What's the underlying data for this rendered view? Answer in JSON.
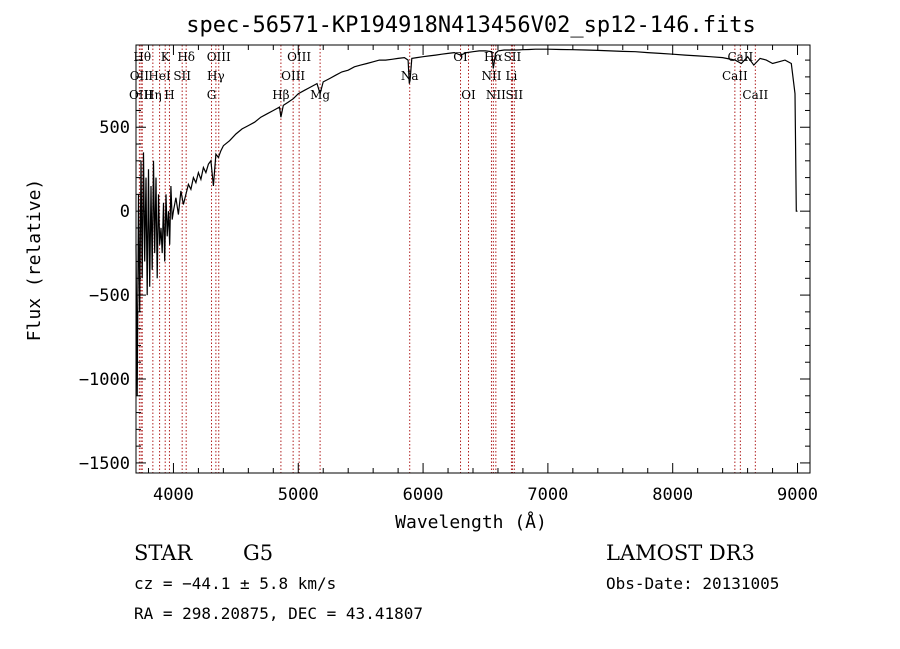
{
  "chart_data": {
    "type": "line",
    "title": "spec-56571-KP194918N413456V02_sp12-146.fits",
    "xlabel": "Wavelength (Å)",
    "ylabel": "Flux (relative)",
    "xlim": [
      3700,
      9100
    ],
    "ylim": [
      -1560,
      990
    ],
    "xticks": [
      4000,
      5000,
      6000,
      7000,
      8000,
      9000
    ],
    "yticks": [
      -1500,
      -1000,
      -500,
      0,
      500
    ],
    "xtick_labels": [
      "4000",
      "5000",
      "6000",
      "7000",
      "8000",
      "9000"
    ],
    "ytick_labels": [
      "−1500",
      "−1000",
      "−500",
      "0",
      "500"
    ],
    "series": [
      {
        "name": "spectrum",
        "x": [
          3700,
          3710,
          3720,
          3730,
          3740,
          3750,
          3760,
          3770,
          3780,
          3790,
          3800,
          3810,
          3820,
          3830,
          3840,
          3850,
          3860,
          3870,
          3880,
          3890,
          3900,
          3910,
          3920,
          3930,
          3940,
          3950,
          3960,
          3970,
          3980,
          3990,
          4000,
          4020,
          4040,
          4060,
          4080,
          4100,
          4120,
          4140,
          4160,
          4180,
          4200,
          4220,
          4240,
          4260,
          4280,
          4300,
          4320,
          4340,
          4360,
          4380,
          4400,
          4450,
          4500,
          4550,
          4600,
          4650,
          4700,
          4750,
          4800,
          4850,
          4861,
          4880,
          4920,
          4960,
          5000,
          5050,
          5100,
          5150,
          5175,
          5200,
          5250,
          5300,
          5350,
          5400,
          5450,
          5500,
          5550,
          5600,
          5650,
          5700,
          5750,
          5800,
          5850,
          5880,
          5890,
          5896,
          5910,
          5950,
          6000,
          6050,
          6100,
          6150,
          6200,
          6250,
          6300,
          6350,
          6400,
          6450,
          6500,
          6550,
          6563,
          6580,
          6600,
          6650,
          6700,
          6750,
          6800,
          6850,
          6900,
          6950,
          7000,
          7100,
          7200,
          7300,
          7400,
          7500,
          7600,
          7700,
          7800,
          7900,
          8000,
          8100,
          8200,
          8300,
          8400,
          8500,
          8550,
          8600,
          8650,
          8700,
          8750,
          8800,
          8850,
          8900,
          8950,
          8980,
          8990,
          9000
        ],
        "y": [
          -200,
          -1100,
          100,
          -600,
          300,
          -400,
          350,
          -300,
          200,
          -500,
          250,
          -450,
          150,
          -350,
          300,
          -250,
          200,
          -400,
          100,
          -200,
          -100,
          -250,
          50,
          -300,
          100,
          -150,
          0,
          -200,
          150,
          -50,
          0,
          80,
          -20,
          120,
          40,
          100,
          160,
          130,
          200,
          170,
          230,
          190,
          260,
          230,
          280,
          300,
          150,
          340,
          320,
          360,
          390,
          420,
          460,
          490,
          510,
          530,
          560,
          580,
          600,
          620,
          560,
          630,
          650,
          670,
          700,
          720,
          740,
          760,
          700,
          770,
          790,
          810,
          830,
          840,
          860,
          870,
          880,
          890,
          900,
          900,
          905,
          910,
          915,
          900,
          760,
          780,
          910,
          915,
          920,
          925,
          930,
          935,
          940,
          945,
          930,
          945,
          950,
          955,
          955,
          950,
          850,
          940,
          955,
          960,
          960,
          960,
          962,
          963,
          965,
          965,
          965,
          963,
          962,
          960,
          958,
          955,
          952,
          950,
          945,
          940,
          935,
          930,
          925,
          920,
          915,
          900,
          880,
          920,
          870,
          910,
          900,
          880,
          890,
          900,
          880,
          700,
          0,
          0
        ]
      }
    ],
    "spectral_lines": [
      {
        "label": "Hθ",
        "x": 3750,
        "row": 0
      },
      {
        "label": "OII",
        "x": 3727,
        "row": 1
      },
      {
        "label": "OIII",
        "x": 3740,
        "row": 2
      },
      {
        "label": "K",
        "x": 3934,
        "row": 0
      },
      {
        "label": "HeI",
        "x": 3889,
        "row": 1
      },
      {
        "label": "Hη",
        "x": 3835,
        "row": 2
      },
      {
        "label": "Hδ",
        "x": 4102,
        "row": 0
      },
      {
        "label": "SII",
        "x": 4070,
        "row": 1
      },
      {
        "label": "H",
        "x": 3968,
        "row": 2
      },
      {
        "label": "OIII",
        "x": 4363,
        "row": 0
      },
      {
        "label": "Hγ",
        "x": 4340,
        "row": 1
      },
      {
        "label": "G",
        "x": 4305,
        "row": 2
      },
      {
        "label": "Hβ",
        "x": 4861,
        "row": 2
      },
      {
        "label": "OIII",
        "x": 5007,
        "row": 0
      },
      {
        "label": "OIII",
        "x": 4959,
        "row": 1
      },
      {
        "label": "Mg",
        "x": 5175,
        "row": 2
      },
      {
        "label": "Na",
        "x": 5893,
        "row": 1
      },
      {
        "label": "OI",
        "x": 6300,
        "row": 0
      },
      {
        "label": "OI",
        "x": 6364,
        "row": 2
      },
      {
        "label": "Hα",
        "x": 6563,
        "row": 0
      },
      {
        "label": "NII",
        "x": 6548,
        "row": 1
      },
      {
        "label": "NII",
        "x": 6583,
        "row": 2
      },
      {
        "label": "SII",
        "x": 6716,
        "row": 0
      },
      {
        "label": "Li",
        "x": 6708,
        "row": 1
      },
      {
        "label": "SII",
        "x": 6731,
        "row": 2
      },
      {
        "label": "CaII",
        "x": 8542,
        "row": 0
      },
      {
        "label": "CaII",
        "x": 8498,
        "row": 1
      },
      {
        "label": "CaII",
        "x": 8662,
        "row": 2
      }
    ]
  },
  "info": {
    "class": "STAR",
    "subclass": "G5",
    "survey": "LAMOST DR3",
    "cz": "cz = −44.1 ± 5.8 km/s",
    "obs_date": "Obs-Date: 20131005",
    "radec": "RA = 298.20875, DEC =  43.41807"
  },
  "colors": {
    "line_markers": "#b02020",
    "spectrum": "#000000"
  }
}
